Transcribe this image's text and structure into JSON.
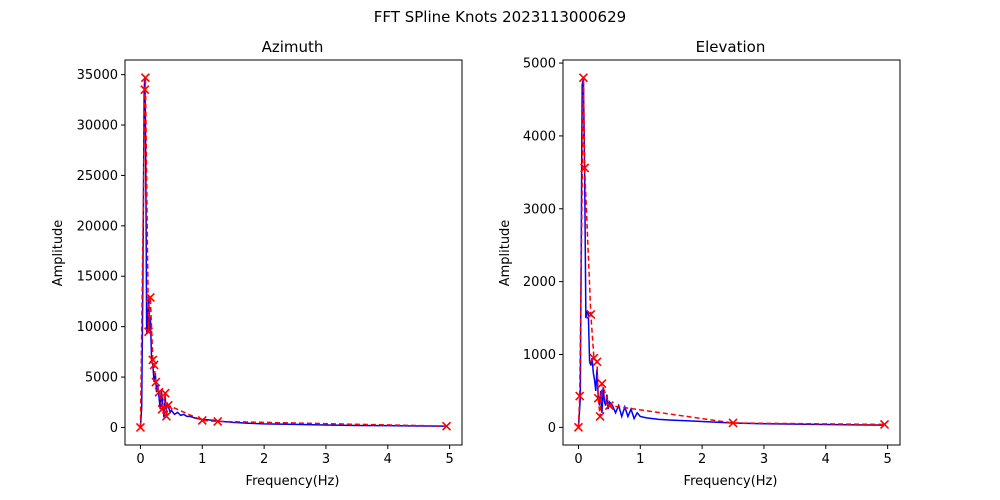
{
  "figure": {
    "suptitle": "FFT SPline Knots 2023113000629",
    "line_color": "#0000ff",
    "knot_color": "#ff0000"
  },
  "chart_data": [
    {
      "type": "line",
      "title": "Azimuth",
      "xlabel": "Frequency(Hz)",
      "ylabel": "Amplitude",
      "xlim": [
        -0.25,
        5.2
      ],
      "ylim": [
        -1740,
        36450
      ],
      "xticks": [
        0,
        1,
        2,
        3,
        4,
        5
      ],
      "yticks": [
        0,
        5000,
        10000,
        15000,
        20000,
        25000,
        30000,
        35000
      ],
      "grid": false,
      "legend": "none",
      "series": [
        {
          "kind": "fft-line",
          "x": [
            0,
            0.02,
            0.04,
            0.06,
            0.07,
            0.08,
            0.09,
            0.1,
            0.11,
            0.13,
            0.15,
            0.16,
            0.18,
            0.2,
            0.22,
            0.24,
            0.26,
            0.28,
            0.3,
            0.32,
            0.34,
            0.36,
            0.38,
            0.4,
            0.42,
            0.44,
            0.46,
            0.48,
            0.5,
            0.55,
            0.6,
            0.65,
            0.7,
            0.75,
            0.8,
            0.9,
            1.0,
            1.1,
            1.2,
            1.3,
            1.5,
            1.75,
            2.0,
            2.5,
            3.0,
            3.5,
            4.0,
            4.5,
            4.95
          ],
          "y": [
            0,
            2000,
            15000,
            33500,
            34700,
            31000,
            22000,
            9500,
            9300,
            13000,
            9600,
            11000,
            6700,
            6200,
            4500,
            5400,
            3500,
            4200,
            3000,
            1800,
            3600,
            2300,
            1000,
            2900,
            1800,
            2300,
            1900,
            1500,
            1700,
            1300,
            1500,
            1200,
            1300,
            1100,
            1100,
            900,
            800,
            750,
            700,
            600,
            500,
            420,
            350,
            300,
            250,
            200,
            180,
            150,
            130
          ]
        },
        {
          "kind": "spline-knots",
          "x": [
            0,
            0.07,
            0.08,
            0.13,
            0.16,
            0.2,
            0.22,
            0.25,
            0.3,
            0.35,
            0.4,
            0.42,
            0.45,
            1.0,
            1.25,
            4.95
          ],
          "y": [
            0,
            33500,
            34700,
            9500,
            12900,
            6700,
            6200,
            4500,
            3500,
            1800,
            3400,
            1100,
            2200,
            700,
            600,
            130
          ]
        }
      ]
    },
    {
      "type": "line",
      "title": "Elevation",
      "xlabel": "Frequency(Hz)",
      "ylabel": "Amplitude",
      "xlim": [
        -0.25,
        5.2
      ],
      "ylim": [
        -242,
        5042
      ],
      "xticks": [
        0,
        1,
        2,
        3,
        4,
        5
      ],
      "yticks": [
        0,
        1000,
        2000,
        3000,
        4000,
        5000
      ],
      "grid": false,
      "legend": "none",
      "series": [
        {
          "kind": "fft-line",
          "x": [
            0,
            0.03,
            0.06,
            0.08,
            0.1,
            0.12,
            0.14,
            0.16,
            0.18,
            0.2,
            0.22,
            0.24,
            0.26,
            0.28,
            0.3,
            0.32,
            0.34,
            0.36,
            0.38,
            0.4,
            0.42,
            0.44,
            0.46,
            0.48,
            0.5,
            0.55,
            0.6,
            0.65,
            0.7,
            0.75,
            0.8,
            0.85,
            0.9,
            0.95,
            1.0,
            1.1,
            1.2,
            1.3,
            1.5,
            1.75,
            2.0,
            2.5,
            3.0,
            3.5,
            4.0,
            4.5,
            4.95
          ],
          "y": [
            0,
            400,
            4700,
            4800,
            3500,
            1500,
            1600,
            1550,
            900,
            850,
            950,
            750,
            650,
            500,
            800,
            400,
            300,
            500,
            200,
            550,
            350,
            300,
            450,
            250,
            350,
            300,
            200,
            300,
            150,
            280,
            150,
            250,
            120,
            200,
            150,
            130,
            120,
            110,
            100,
            90,
            80,
            60,
            50,
            45,
            40,
            35,
            30
          ]
        },
        {
          "kind": "spline-knots",
          "x": [
            0,
            0.02,
            0.08,
            0.1,
            0.2,
            0.25,
            0.3,
            0.32,
            0.35,
            0.38,
            0.5,
            2.5,
            4.95
          ],
          "y": [
            0,
            430,
            4800,
            3560,
            1550,
            950,
            900,
            400,
            150,
            600,
            300,
            60,
            40
          ]
        }
      ]
    }
  ]
}
